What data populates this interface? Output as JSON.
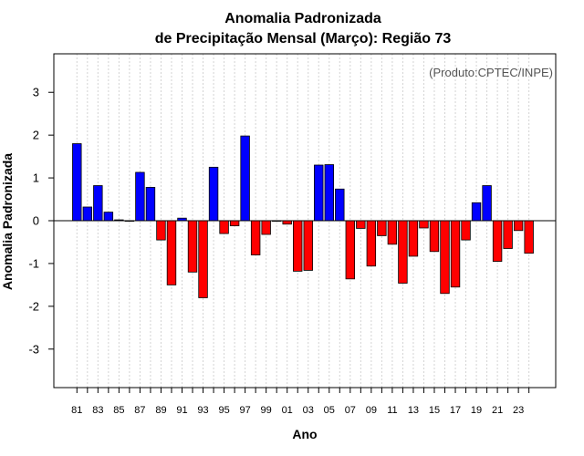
{
  "chart_data": {
    "type": "bar",
    "title_line1": "Anomalia Padronizada",
    "title_line2": "de Precipitação Mensal (Março): Região 73",
    "credit": "(Produto:CPTEC/INPE)",
    "xlabel": "Ano",
    "ylabel": "Anomalia Padronizada",
    "ylim": [
      -3.9,
      3.9
    ],
    "yticks": [
      -3,
      -2,
      -1,
      0,
      1,
      2,
      3
    ],
    "xtick_labels": [
      "81",
      "83",
      "85",
      "87",
      "89",
      "91",
      "93",
      "95",
      "97",
      "99",
      "01",
      "03",
      "05",
      "07",
      "09",
      "11",
      "13",
      "15",
      "17",
      "19",
      "21",
      "23"
    ],
    "categories": [
      "1981",
      "1982",
      "1983",
      "1984",
      "1985",
      "1986",
      "1987",
      "1988",
      "1989",
      "1990",
      "1991",
      "1992",
      "1993",
      "1994",
      "1995",
      "1996",
      "1997",
      "1998",
      "1999",
      "2000",
      "2001",
      "2002",
      "2003",
      "2004",
      "2005",
      "2006",
      "2007",
      "2008",
      "2009",
      "2010",
      "2011",
      "2012",
      "2013",
      "2014",
      "2015",
      "2016",
      "2017",
      "2018",
      "2019",
      "2020",
      "2021",
      "2022",
      "2023",
      "2024"
    ],
    "values": [
      1.8,
      0.32,
      0.82,
      0.2,
      0.02,
      0.0,
      1.13,
      0.78,
      -0.45,
      -1.5,
      0.06,
      -1.2,
      -1.8,
      1.25,
      -0.3,
      -0.12,
      1.98,
      -0.8,
      -0.32,
      0.0,
      -0.08,
      -1.18,
      -1.16,
      1.3,
      1.31,
      0.74,
      -1.36,
      -0.18,
      -1.06,
      -0.35,
      -0.55,
      -1.46,
      -0.83,
      -0.17,
      -0.72,
      -1.7,
      -1.55,
      -0.45,
      0.42,
      0.82,
      -0.95,
      -0.65,
      -0.23,
      -0.76
    ],
    "colors": {
      "positive": "#0000ff",
      "negative": "#ff0000",
      "grid": "#d3d3d3",
      "axis": "#000000"
    }
  }
}
